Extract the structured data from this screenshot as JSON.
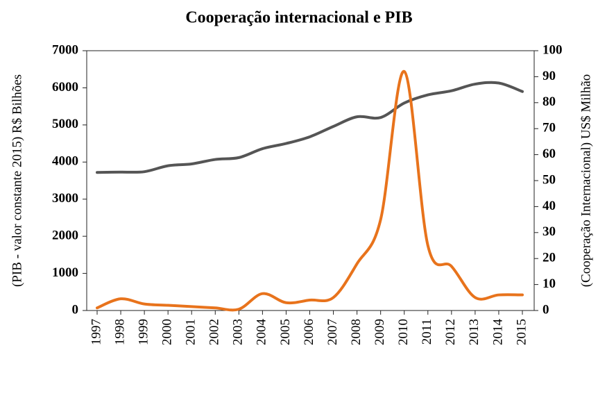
{
  "chart_data": {
    "type": "line",
    "title": "Cooperação internacional e PIB",
    "ylabel": "(PIB - valor constante 2015) R$ Bilhões",
    "y2label": "(Cooperação Internacional) US$ Milhão",
    "categories": [
      "1997",
      "1998",
      "1999",
      "2000",
      "2001",
      "2002",
      "2003",
      "2004",
      "2005",
      "2006",
      "2007",
      "2008",
      "2009",
      "2010",
      "2011",
      "2012",
      "2013",
      "2014",
      "2015"
    ],
    "series": [
      {
        "name": "PIB",
        "color": "#555555",
        "values": [
          3720,
          3730,
          3740,
          3900,
          3950,
          4070,
          4120,
          4360,
          4500,
          4680,
          4960,
          5220,
          5200,
          5590,
          5810,
          5920,
          6100,
          6130,
          5900
        ]
      },
      {
        "name": "Cooperação internacional",
        "color": "#e8731c",
        "axis": "y2",
        "values": [
          1,
          4.5,
          2.5,
          2,
          1.5,
          1,
          0.5,
          6.5,
          3,
          4,
          5,
          18,
          35,
          92,
          25,
          17,
          5,
          6,
          6
        ]
      }
    ],
    "ylim": [
      0,
      7000
    ],
    "yticks": [
      0,
      1000,
      2000,
      3000,
      4000,
      5000,
      6000,
      7000
    ],
    "y2lim": [
      0,
      100
    ],
    "y2ticks": [
      0,
      10,
      20,
      30,
      40,
      50,
      60,
      70,
      80,
      90,
      100
    ]
  }
}
